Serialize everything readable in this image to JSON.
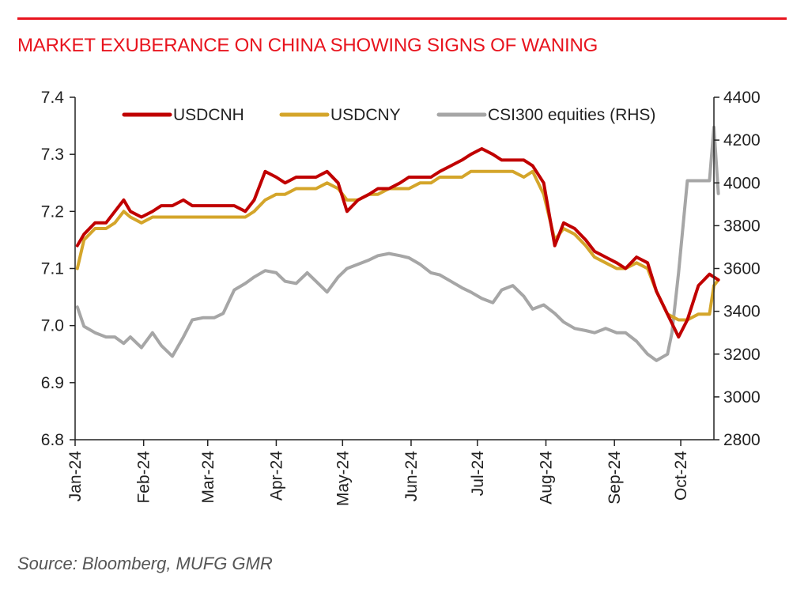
{
  "header": {
    "title": "MARKET EXUBERANCE ON CHINA SHOWING SIGNS OF WANING",
    "accent_color": "#e8141e"
  },
  "footer": {
    "source": "Source: Bloomberg, MUFG GMR"
  },
  "chart_data": {
    "type": "line",
    "title": "MARKET EXUBERANCE ON CHINA SHOWING SIGNS OF WANING",
    "xlabel": "",
    "ylabel": "",
    "ylabel_right": "",
    "grid": false,
    "legend_position": "top",
    "x_ticks": [
      "Jan-24",
      "Feb-24",
      "Mar-24",
      "Apr-24",
      "May-24",
      "Jun-24",
      "Jul-24",
      "Aug-24",
      "Sep-24",
      "Oct-24"
    ],
    "ylim_left": [
      6.8,
      7.4
    ],
    "yticks_left": [
      "6.8",
      "6.9",
      "7.0",
      "7.1",
      "7.2",
      "7.3",
      "7.4"
    ],
    "ylim_right": [
      2800,
      4400
    ],
    "yticks_right": [
      "2800",
      "3000",
      "3200",
      "3400",
      "3600",
      "3800",
      "4000",
      "4200",
      "4400"
    ],
    "series": [
      {
        "name": "USDCNH",
        "axis": "left",
        "color": "#c00000",
        "points": [
          [
            "2024-01-02",
            7.14
          ],
          [
            "2024-01-05",
            7.16
          ],
          [
            "2024-01-10",
            7.18
          ],
          [
            "2024-01-15",
            7.18
          ],
          [
            "2024-01-19",
            7.2
          ],
          [
            "2024-01-23",
            7.22
          ],
          [
            "2024-01-26",
            7.2
          ],
          [
            "2024-01-31",
            7.19
          ],
          [
            "2024-02-05",
            7.2
          ],
          [
            "2024-02-09",
            7.21
          ],
          [
            "2024-02-14",
            7.21
          ],
          [
            "2024-02-19",
            7.22
          ],
          [
            "2024-02-23",
            7.21
          ],
          [
            "2024-02-28",
            7.21
          ],
          [
            "2024-03-04",
            7.21
          ],
          [
            "2024-03-08",
            7.21
          ],
          [
            "2024-03-13",
            7.21
          ],
          [
            "2024-03-18",
            7.2
          ],
          [
            "2024-03-22",
            7.22
          ],
          [
            "2024-03-27",
            7.27
          ],
          [
            "2024-04-01",
            7.26
          ],
          [
            "2024-04-05",
            7.25
          ],
          [
            "2024-04-10",
            7.26
          ],
          [
            "2024-04-15",
            7.26
          ],
          [
            "2024-04-19",
            7.26
          ],
          [
            "2024-04-24",
            7.27
          ],
          [
            "2024-04-29",
            7.25
          ],
          [
            "2024-05-03",
            7.2
          ],
          [
            "2024-05-08",
            7.22
          ],
          [
            "2024-05-13",
            7.23
          ],
          [
            "2024-05-17",
            7.24
          ],
          [
            "2024-05-22",
            7.24
          ],
          [
            "2024-05-27",
            7.25
          ],
          [
            "2024-05-31",
            7.26
          ],
          [
            "2024-06-05",
            7.26
          ],
          [
            "2024-06-10",
            7.26
          ],
          [
            "2024-06-14",
            7.27
          ],
          [
            "2024-06-19",
            7.28
          ],
          [
            "2024-06-24",
            7.29
          ],
          [
            "2024-06-28",
            7.3
          ],
          [
            "2024-07-03",
            7.31
          ],
          [
            "2024-07-08",
            7.3
          ],
          [
            "2024-07-12",
            7.29
          ],
          [
            "2024-07-17",
            7.29
          ],
          [
            "2024-07-22",
            7.29
          ],
          [
            "2024-07-26",
            7.28
          ],
          [
            "2024-07-31",
            7.25
          ],
          [
            "2024-08-05",
            7.14
          ],
          [
            "2024-08-09",
            7.18
          ],
          [
            "2024-08-14",
            7.17
          ],
          [
            "2024-08-19",
            7.15
          ],
          [
            "2024-08-23",
            7.13
          ],
          [
            "2024-08-28",
            7.12
          ],
          [
            "2024-09-02",
            7.11
          ],
          [
            "2024-09-06",
            7.1
          ],
          [
            "2024-09-11",
            7.12
          ],
          [
            "2024-09-16",
            7.11
          ],
          [
            "2024-09-20",
            7.06
          ],
          [
            "2024-09-25",
            7.02
          ],
          [
            "2024-09-30",
            6.98
          ],
          [
            "2024-10-04",
            7.01
          ],
          [
            "2024-10-09",
            7.07
          ],
          [
            "2024-10-14",
            7.09
          ],
          [
            "2024-10-18",
            7.08
          ]
        ]
      },
      {
        "name": "USDCNY",
        "axis": "left",
        "color": "#d4a52a",
        "points": [
          [
            "2024-01-02",
            7.1
          ],
          [
            "2024-01-05",
            7.15
          ],
          [
            "2024-01-10",
            7.17
          ],
          [
            "2024-01-15",
            7.17
          ],
          [
            "2024-01-19",
            7.18
          ],
          [
            "2024-01-23",
            7.2
          ],
          [
            "2024-01-26",
            7.19
          ],
          [
            "2024-01-31",
            7.18
          ],
          [
            "2024-02-05",
            7.19
          ],
          [
            "2024-02-09",
            7.19
          ],
          [
            "2024-02-14",
            7.19
          ],
          [
            "2024-02-19",
            7.19
          ],
          [
            "2024-02-23",
            7.19
          ],
          [
            "2024-02-28",
            7.19
          ],
          [
            "2024-03-04",
            7.19
          ],
          [
            "2024-03-08",
            7.19
          ],
          [
            "2024-03-13",
            7.19
          ],
          [
            "2024-03-18",
            7.19
          ],
          [
            "2024-03-22",
            7.2
          ],
          [
            "2024-03-27",
            7.22
          ],
          [
            "2024-04-01",
            7.23
          ],
          [
            "2024-04-05",
            7.23
          ],
          [
            "2024-04-10",
            7.24
          ],
          [
            "2024-04-15",
            7.24
          ],
          [
            "2024-04-19",
            7.24
          ],
          [
            "2024-04-24",
            7.25
          ],
          [
            "2024-04-29",
            7.24
          ],
          [
            "2024-05-03",
            7.22
          ],
          [
            "2024-05-08",
            7.22
          ],
          [
            "2024-05-13",
            7.23
          ],
          [
            "2024-05-17",
            7.23
          ],
          [
            "2024-05-22",
            7.24
          ],
          [
            "2024-05-27",
            7.24
          ],
          [
            "2024-05-31",
            7.24
          ],
          [
            "2024-06-05",
            7.25
          ],
          [
            "2024-06-10",
            7.25
          ],
          [
            "2024-06-14",
            7.26
          ],
          [
            "2024-06-19",
            7.26
          ],
          [
            "2024-06-24",
            7.26
          ],
          [
            "2024-06-28",
            7.27
          ],
          [
            "2024-07-03",
            7.27
          ],
          [
            "2024-07-08",
            7.27
          ],
          [
            "2024-07-12",
            7.27
          ],
          [
            "2024-07-17",
            7.27
          ],
          [
            "2024-07-22",
            7.26
          ],
          [
            "2024-07-26",
            7.27
          ],
          [
            "2024-07-31",
            7.23
          ],
          [
            "2024-08-05",
            7.15
          ],
          [
            "2024-08-09",
            7.17
          ],
          [
            "2024-08-14",
            7.16
          ],
          [
            "2024-08-19",
            7.14
          ],
          [
            "2024-08-23",
            7.12
          ],
          [
            "2024-08-28",
            7.11
          ],
          [
            "2024-09-02",
            7.1
          ],
          [
            "2024-09-06",
            7.1
          ],
          [
            "2024-09-11",
            7.11
          ],
          [
            "2024-09-16",
            7.1
          ],
          [
            "2024-09-20",
            7.06
          ],
          [
            "2024-09-25",
            7.02
          ],
          [
            "2024-09-30",
            7.01
          ],
          [
            "2024-10-04",
            7.01
          ],
          [
            "2024-10-09",
            7.02
          ],
          [
            "2024-10-14",
            7.02
          ],
          [
            "2024-10-16",
            7.07
          ],
          [
            "2024-10-18",
            7.08
          ]
        ]
      },
      {
        "name": "CSI300 equities (RHS)",
        "axis": "right",
        "color": "#a6a6a6",
        "points": [
          [
            "2024-01-02",
            3420
          ],
          [
            "2024-01-05",
            3330
          ],
          [
            "2024-01-10",
            3300
          ],
          [
            "2024-01-15",
            3280
          ],
          [
            "2024-01-19",
            3280
          ],
          [
            "2024-01-23",
            3250
          ],
          [
            "2024-01-26",
            3280
          ],
          [
            "2024-01-31",
            3230
          ],
          [
            "2024-02-05",
            3300
          ],
          [
            "2024-02-09",
            3240
          ],
          [
            "2024-02-14",
            3190
          ],
          [
            "2024-02-19",
            3280
          ],
          [
            "2024-02-23",
            3360
          ],
          [
            "2024-02-28",
            3370
          ],
          [
            "2024-03-04",
            3370
          ],
          [
            "2024-03-08",
            3390
          ],
          [
            "2024-03-13",
            3500
          ],
          [
            "2024-03-18",
            3530
          ],
          [
            "2024-03-22",
            3560
          ],
          [
            "2024-03-27",
            3590
          ],
          [
            "2024-04-01",
            3580
          ],
          [
            "2024-04-05",
            3540
          ],
          [
            "2024-04-10",
            3530
          ],
          [
            "2024-04-15",
            3580
          ],
          [
            "2024-04-19",
            3540
          ],
          [
            "2024-04-24",
            3490
          ],
          [
            "2024-04-29",
            3560
          ],
          [
            "2024-05-03",
            3600
          ],
          [
            "2024-05-08",
            3620
          ],
          [
            "2024-05-13",
            3640
          ],
          [
            "2024-05-17",
            3660
          ],
          [
            "2024-05-22",
            3670
          ],
          [
            "2024-05-27",
            3660
          ],
          [
            "2024-05-31",
            3650
          ],
          [
            "2024-06-05",
            3620
          ],
          [
            "2024-06-10",
            3580
          ],
          [
            "2024-06-14",
            3570
          ],
          [
            "2024-06-19",
            3540
          ],
          [
            "2024-06-24",
            3510
          ],
          [
            "2024-06-28",
            3490
          ],
          [
            "2024-07-03",
            3460
          ],
          [
            "2024-07-08",
            3440
          ],
          [
            "2024-07-12",
            3500
          ],
          [
            "2024-07-17",
            3520
          ],
          [
            "2024-07-22",
            3470
          ],
          [
            "2024-07-26",
            3410
          ],
          [
            "2024-07-31",
            3430
          ],
          [
            "2024-08-05",
            3390
          ],
          [
            "2024-08-09",
            3350
          ],
          [
            "2024-08-14",
            3320
          ],
          [
            "2024-08-19",
            3310
          ],
          [
            "2024-08-23",
            3300
          ],
          [
            "2024-08-28",
            3320
          ],
          [
            "2024-09-02",
            3300
          ],
          [
            "2024-09-06",
            3300
          ],
          [
            "2024-09-11",
            3260
          ],
          [
            "2024-09-16",
            3200
          ],
          [
            "2024-09-20",
            3170
          ],
          [
            "2024-09-25",
            3200
          ],
          [
            "2024-09-27",
            3300
          ],
          [
            "2024-09-30",
            3580
          ],
          [
            "2024-10-04",
            4010
          ],
          [
            "2024-10-08",
            4010
          ],
          [
            "2024-10-09",
            4010
          ],
          [
            "2024-10-14",
            4010
          ],
          [
            "2024-10-16",
            4260
          ],
          [
            "2024-10-18",
            3950
          ]
        ]
      }
    ]
  }
}
